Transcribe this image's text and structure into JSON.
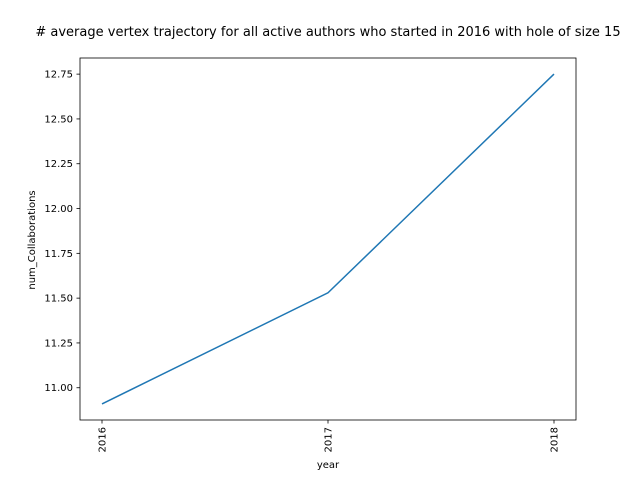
{
  "chart_data": {
    "type": "line",
    "title": "# average vertex trajectory for all active authors who started in 2016 with hole of size 15",
    "xlabel": "year",
    "ylabel": "num_Collaborations",
    "categories": [
      "2016",
      "2017",
      "2018"
    ],
    "series": [
      {
        "values": [
          10.91,
          11.53,
          12.75
        ]
      }
    ],
    "ylim": [
      10.82,
      12.84
    ],
    "yticks": [
      "11.00",
      "11.25",
      "11.50",
      "11.75",
      "12.00",
      "12.25",
      "12.50",
      "12.75"
    ],
    "line_color": "#1f77b4",
    "grid": false,
    "legend": "none"
  }
}
